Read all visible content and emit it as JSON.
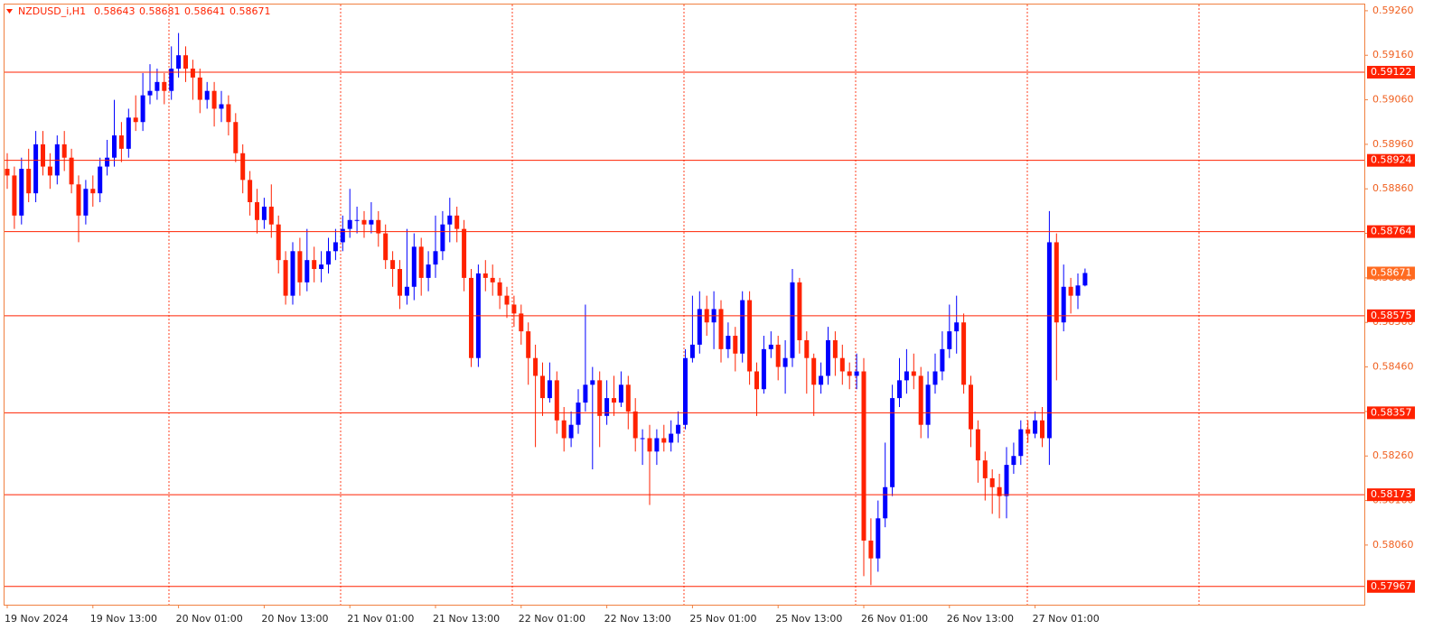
{
  "chart_data": {
    "type": "candlestick",
    "title": "NZDUSD_i,H1",
    "up_color": "#0000ff",
    "down_color": "#ff2200",
    "level_color": "#ff2200",
    "ylim": [
      0.57926,
      0.59274
    ],
    "yticks": [
      {
        "value": 0.5926,
        "label": "0.59260"
      },
      {
        "value": 0.5916,
        "label": "0.59160"
      },
      {
        "value": 0.5906,
        "label": "0.59060"
      },
      {
        "value": 0.5896,
        "label": "0.58960"
      },
      {
        "value": 0.5886,
        "label": "0.58860"
      },
      {
        "value": 0.5876,
        "label": "0.58760"
      },
      {
        "value": 0.5866,
        "label": "0.58660"
      },
      {
        "value": 0.5856,
        "label": "0.58560"
      },
      {
        "value": 0.5846,
        "label": "0.58460"
      },
      {
        "value": 0.5836,
        "label": "0.58360"
      },
      {
        "value": 0.5826,
        "label": "0.58260"
      },
      {
        "value": 0.5816,
        "label": "0.58160"
      },
      {
        "value": 0.5806,
        "label": "0.58060"
      }
    ],
    "levels": [
      0.59122,
      0.58924,
      0.58764,
      0.58575,
      0.58357,
      0.58173,
      0.57967
    ],
    "x_labels": [
      "19 Nov 2024",
      "19 Nov 13:00",
      "20 Nov 01:00",
      "20 Nov 13:00",
      "21 Nov 01:00",
      "21 Nov 13:00",
      "22 Nov 01:00",
      "22 Nov 13:00",
      "25 Nov 01:00",
      "25 Nov 13:00",
      "26 Nov 01:00",
      "26 Nov 13:00",
      "27 Nov 01:00"
    ],
    "open": [
      0.58905,
      0.5889,
      0.588,
      0.58905,
      0.5885,
      0.5896,
      0.5891,
      0.5889,
      0.5896,
      0.5893,
      0.5887,
      0.588,
      0.5886,
      0.5885,
      0.5891,
      0.5893,
      0.5898,
      0.5895,
      0.5902,
      0.5901,
      0.5907,
      0.5908,
      0.591,
      0.5908,
      0.5913,
      0.5916,
      0.5913,
      0.5911,
      0.5906,
      0.5908,
      0.5904,
      0.5905,
      0.5901,
      0.5894,
      0.5888,
      0.5883,
      0.5879,
      0.5882,
      0.5878,
      0.587,
      0.5862,
      0.5872,
      0.5865,
      0.587,
      0.5868,
      0.5869,
      0.5872,
      0.5874,
      0.5877,
      0.5879,
      0.5879,
      0.5878,
      0.5879,
      0.5876,
      0.587,
      0.5868,
      0.5862,
      0.5864,
      0.5873,
      0.5866,
      0.5869,
      0.5872,
      0.5878,
      0.588,
      0.5877,
      0.5866,
      0.5848,
      0.5867,
      0.5866,
      0.5865,
      0.5862,
      0.586,
      0.5858,
      0.5854,
      0.5848,
      0.5844,
      0.5839,
      0.5843,
      0.5834,
      0.583,
      0.5833,
      0.5838,
      0.5842,
      0.5843,
      0.5835,
      0.5839,
      0.5838,
      0.5842,
      0.5836,
      0.583,
      0.583,
      0.5827,
      0.583,
      0.5829,
      0.5831,
      0.5833,
      0.5848,
      0.5851,
      0.5859,
      0.5856,
      0.5859,
      0.585,
      0.5853,
      0.5849,
      0.5861,
      0.5845,
      0.5841,
      0.585,
      0.5851,
      0.5846,
      0.5848,
      0.5865,
      0.5852,
      0.5848,
      0.5842,
      0.5844,
      0.5852,
      0.5848,
      0.5845,
      0.5844,
      0.5845,
      0.5807,
      0.5803,
      0.5812,
      0.5819,
      0.5839,
      0.5843,
      0.5845,
      0.5844,
      0.5833,
      0.5842,
      0.5845,
      0.585,
      0.5854,
      0.5856,
      0.5842,
      0.5832,
      0.5825,
      0.5821,
      0.5819,
      0.5817,
      0.5824,
      0.5826,
      0.5832,
      0.5831,
      0.5834,
      0.583,
      0.5874,
      0.5856,
      0.5864,
      0.5862,
      0.58643
    ],
    "high": [
      0.5894,
      0.5891,
      0.5893,
      0.5895,
      0.5899,
      0.5899,
      0.5894,
      0.5898,
      0.5899,
      0.5895,
      0.5889,
      0.5888,
      0.5889,
      0.5893,
      0.5897,
      0.5906,
      0.5901,
      0.5904,
      0.5907,
      0.5912,
      0.5914,
      0.5913,
      0.5912,
      0.5918,
      0.5921,
      0.5918,
      0.5915,
      0.5913,
      0.591,
      0.591,
      0.5908,
      0.5907,
      0.5903,
      0.5896,
      0.589,
      0.5886,
      0.5884,
      0.5887,
      0.588,
      0.5872,
      0.5874,
      0.5875,
      0.5877,
      0.5873,
      0.5872,
      0.5875,
      0.5877,
      0.588,
      0.5886,
      0.5882,
      0.5881,
      0.5883,
      0.5881,
      0.5878,
      0.5872,
      0.587,
      0.5877,
      0.5876,
      0.5875,
      0.5872,
      0.588,
      0.5881,
      0.5884,
      0.5882,
      0.5879,
      0.5868,
      0.5869,
      0.587,
      0.5869,
      0.5866,
      0.5864,
      0.5862,
      0.586,
      0.5856,
      0.5851,
      0.5847,
      0.5847,
      0.5845,
      0.5837,
      0.5836,
      0.5841,
      0.586,
      0.5846,
      0.5845,
      0.5843,
      0.5844,
      0.5845,
      0.5844,
      0.5839,
      0.5832,
      0.5833,
      0.5832,
      0.5833,
      0.5834,
      0.5836,
      0.585,
      0.5862,
      0.5863,
      0.5862,
      0.5863,
      0.5861,
      0.5856,
      0.5855,
      0.5863,
      0.5863,
      0.5847,
      0.5853,
      0.5854,
      0.5853,
      0.5852,
      0.5868,
      0.5866,
      0.5854,
      0.5849,
      0.5847,
      0.5855,
      0.5854,
      0.5851,
      0.5847,
      0.5849,
      0.5848,
      0.5812,
      0.5816,
      0.5829,
      0.5842,
      0.5848,
      0.585,
      0.5849,
      0.5846,
      0.5845,
      0.5849,
      0.5854,
      0.586,
      0.5862,
      0.5858,
      0.5844,
      0.5834,
      0.5827,
      0.5823,
      0.5822,
      0.5828,
      0.5829,
      0.5834,
      0.5834,
      0.5836,
      0.5837,
      0.5881,
      0.5876,
      0.5869,
      0.5866,
      0.5867,
      0.58681
    ],
    "low": [
      0.5886,
      0.5877,
      0.5878,
      0.5883,
      0.5883,
      0.5889,
      0.5886,
      0.5887,
      0.589,
      0.5885,
      0.5874,
      0.5878,
      0.5882,
      0.5883,
      0.5889,
      0.5891,
      0.5892,
      0.5893,
      0.5899,
      0.5899,
      0.5905,
      0.5906,
      0.5905,
      0.5906,
      0.5911,
      0.591,
      0.5906,
      0.5903,
      0.5904,
      0.59,
      0.5901,
      0.5898,
      0.5892,
      0.5885,
      0.588,
      0.5876,
      0.5877,
      0.5875,
      0.5867,
      0.586,
      0.586,
      0.5862,
      0.5863,
      0.5865,
      0.5865,
      0.5867,
      0.587,
      0.5872,
      0.5875,
      0.5876,
      0.5875,
      0.5876,
      0.5873,
      0.5868,
      0.5864,
      0.5859,
      0.586,
      0.5861,
      0.5862,
      0.5863,
      0.5866,
      0.587,
      0.5874,
      0.5874,
      0.5863,
      0.5846,
      0.5846,
      0.5863,
      0.5862,
      0.5859,
      0.5857,
      0.5855,
      0.5851,
      0.5842,
      0.5828,
      0.5835,
      0.5838,
      0.5831,
      0.5827,
      0.5828,
      0.5831,
      0.5836,
      0.5823,
      0.5828,
      0.5833,
      0.5835,
      0.5837,
      0.5832,
      0.5827,
      0.5824,
      0.5815,
      0.5824,
      0.5827,
      0.5827,
      0.5829,
      0.5832,
      0.5847,
      0.5849,
      0.5853,
      0.585,
      0.5847,
      0.5848,
      0.5845,
      0.5847,
      0.5842,
      0.5835,
      0.584,
      0.5848,
      0.5843,
      0.584,
      0.5846,
      0.5849,
      0.584,
      0.5835,
      0.584,
      0.5842,
      0.5844,
      0.5842,
      0.5841,
      0.5841,
      0.5799,
      0.5797,
      0.58,
      0.581,
      0.5817,
      0.5837,
      0.584,
      0.5841,
      0.583,
      0.583,
      0.584,
      0.5843,
      0.5848,
      0.5849,
      0.584,
      0.5828,
      0.582,
      0.5816,
      0.5813,
      0.5812,
      0.5812,
      0.5822,
      0.5824,
      0.5829,
      0.583,
      0.5828,
      0.5824,
      0.5843,
      0.5854,
      0.5858,
      0.5859,
      0.58641
    ],
    "close": [
      0.5889,
      0.588,
      0.58905,
      0.5885,
      0.5896,
      0.5891,
      0.5889,
      0.5896,
      0.5893,
      0.5887,
      0.588,
      0.5886,
      0.5885,
      0.5891,
      0.5893,
      0.5898,
      0.5895,
      0.5902,
      0.5901,
      0.5907,
      0.5908,
      0.591,
      0.5908,
      0.5913,
      0.5916,
      0.5913,
      0.5911,
      0.5906,
      0.5908,
      0.5904,
      0.5905,
      0.5901,
      0.5894,
      0.5888,
      0.5883,
      0.5879,
      0.5882,
      0.5878,
      0.587,
      0.5862,
      0.5872,
      0.5865,
      0.587,
      0.5868,
      0.5869,
      0.5872,
      0.5874,
      0.5877,
      0.5879,
      0.5879,
      0.5878,
      0.5879,
      0.5876,
      0.587,
      0.5868,
      0.5862,
      0.5864,
      0.5873,
      0.5866,
      0.5869,
      0.5872,
      0.5878,
      0.588,
      0.5877,
      0.5866,
      0.5848,
      0.5867,
      0.5866,
      0.5865,
      0.5862,
      0.586,
      0.5858,
      0.5854,
      0.5848,
      0.5844,
      0.5839,
      0.5843,
      0.5834,
      0.583,
      0.5833,
      0.5838,
      0.5842,
      0.5843,
      0.5835,
      0.5839,
      0.5838,
      0.5842,
      0.5836,
      0.583,
      0.583,
      0.5827,
      0.583,
      0.5829,
      0.5831,
      0.5833,
      0.5848,
      0.5851,
      0.5859,
      0.5856,
      0.5859,
      0.585,
      0.5853,
      0.5849,
      0.5861,
      0.5845,
      0.5841,
      0.585,
      0.5851,
      0.5846,
      0.5848,
      0.5865,
      0.5852,
      0.5848,
      0.5842,
      0.5844,
      0.5852,
      0.5848,
      0.5845,
      0.5844,
      0.5845,
      0.5807,
      0.5803,
      0.5812,
      0.5819,
      0.5839,
      0.5843,
      0.5845,
      0.5844,
      0.5833,
      0.5842,
      0.5845,
      0.585,
      0.5854,
      0.5856,
      0.5842,
      0.5832,
      0.5825,
      0.5821,
      0.5819,
      0.5817,
      0.5824,
      0.5826,
      0.5832,
      0.5831,
      0.5834,
      0.583,
      0.5874,
      0.5856,
      0.5864,
      0.5862,
      0.58643,
      0.58671
    ]
  }
}
